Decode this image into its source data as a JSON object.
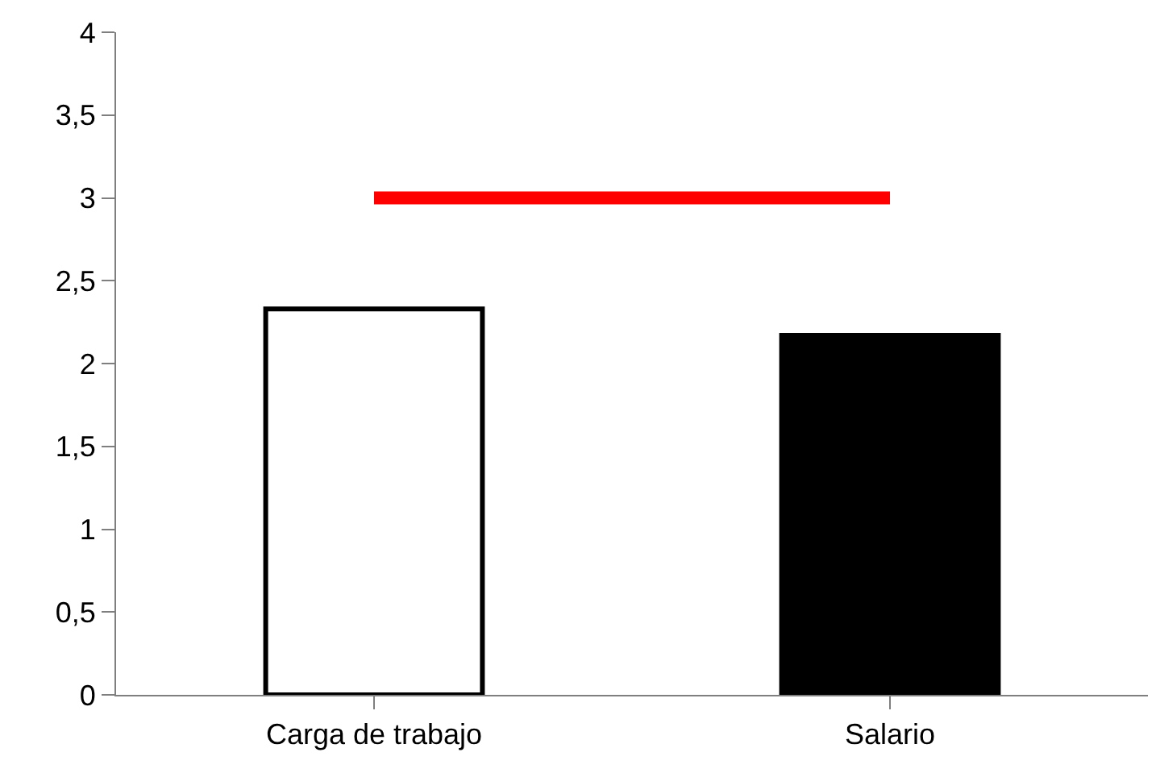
{
  "chart_data": {
    "type": "bar",
    "categories": [
      "Carga de trabajo",
      "Salario"
    ],
    "series": [
      {
        "colors": [
          "#ffffff",
          "#000000"
        ],
        "values": [
          2.33,
          2.17
        ]
      },
      {
        "type": "line",
        "color": "#ff0000",
        "values": [
          3,
          3
        ]
      }
    ],
    "ylim": [
      0,
      4
    ],
    "yticks": [
      0,
      {
        "value": 0.5,
        "label": "0,5"
      },
      1,
      {
        "value": 1.5,
        "label": "1,5"
      },
      2,
      {
        "value": 2.5,
        "label": "2,5"
      },
      3,
      {
        "value": 3.5,
        "label": "3,5"
      },
      4
    ]
  }
}
